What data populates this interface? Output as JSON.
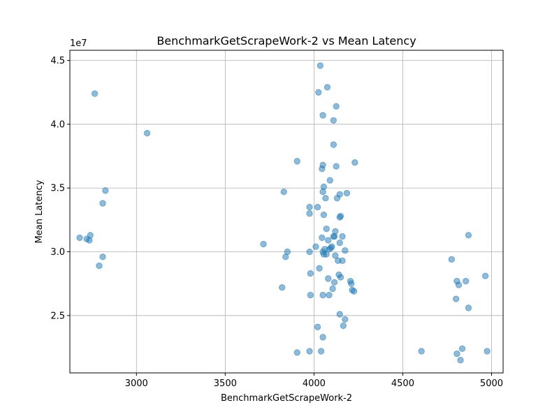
{
  "chart_data": {
    "type": "scatter",
    "title": "BenchmarkGetScrapeWork-2 vs Mean Latency",
    "xlabel": "BenchmarkGetScrapeWork-2",
    "ylabel": "Mean Latency",
    "y_offset_text": "1e7",
    "xlim": [
      2625,
      5065
    ],
    "ylim": [
      20500000,
      45800000
    ],
    "x_ticks": [
      3000,
      3500,
      4000,
      4500,
      5000
    ],
    "x_tick_labels": [
      "3000",
      "3500",
      "4000",
      "4500",
      "5000"
    ],
    "y_ticks": [
      25000000,
      30000000,
      35000000,
      40000000,
      45000000
    ],
    "y_tick_labels": [
      "2.5",
      "3.0",
      "3.5",
      "4.0",
      "4.5"
    ],
    "grid": true,
    "color": "#1f77b4",
    "x": [
      2765,
      3060,
      2680,
      2740,
      2720,
      2735,
      2790,
      2810,
      2825,
      2810,
      4035,
      4075,
      4025,
      4050,
      4125,
      4110,
      4110,
      3905,
      4050,
      4045,
      4125,
      4230,
      4090,
      4055,
      4050,
      3830,
      4185,
      4145,
      4130,
      4065,
      4020,
      3975,
      4150,
      4145,
      3975,
      4055,
      4070,
      4120,
      4115,
      4110,
      4045,
      4160,
      4080,
      4145,
      3715,
      4010,
      4060,
      4100,
      4095,
      4085,
      3850,
      4050,
      4175,
      4070,
      3975,
      4055,
      4135,
      4160,
      4030,
      4120,
      3840,
      3980,
      4080,
      4150,
      4205,
      4115,
      4210,
      4215,
      3820,
      4105,
      4225,
      3980,
      4050,
      4085,
      4140,
      4145,
      4175,
      4165,
      4020,
      4050,
      4040,
      3975,
      3905,
      4825,
      4870,
      4775,
      4965,
      4855,
      4805,
      4815,
      4800,
      4870,
      4605,
      4835,
      4805,
      4975
    ],
    "y": [
      42400000,
      39300000,
      31100000,
      31300000,
      31000000,
      30900000,
      28900000,
      29600000,
      34800000,
      33800000,
      44600000,
      42900000,
      42500000,
      40700000,
      41400000,
      40300000,
      38400000,
      37100000,
      36800000,
      36500000,
      36700000,
      37000000,
      35600000,
      35100000,
      34700000,
      34700000,
      34600000,
      34500000,
      34200000,
      34200000,
      33500000,
      33500000,
      32800000,
      32700000,
      33000000,
      32900000,
      31800000,
      31600000,
      31200000,
      31200000,
      31100000,
      31200000,
      30900000,
      30700000,
      30600000,
      30400000,
      30200000,
      30400000,
      30300000,
      30200000,
      30000000,
      30000000,
      30100000,
      29800000,
      30000000,
      29800000,
      29300000,
      29300000,
      28700000,
      29700000,
      29600000,
      28300000,
      27900000,
      28000000,
      27700000,
      27600000,
      27500000,
      27000000,
      27200000,
      27100000,
      26900000,
      26600000,
      26600000,
      26600000,
      28200000,
      25100000,
      24700000,
      24200000,
      24100000,
      23300000,
      22200000,
      22200000,
      22100000,
      21500000,
      31300000,
      29400000,
      28100000,
      27700000,
      27700000,
      27400000,
      26300000,
      25600000,
      22200000,
      22400000,
      22000000,
      22200000
    ]
  }
}
